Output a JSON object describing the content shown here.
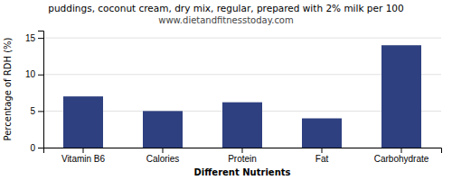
{
  "chart_data": {
    "type": "bar",
    "title": "puddings, coconut cream, dry mix, regular, prepared with 2% milk per 100",
    "subtitle": "www.dietandfitnesstoday.com",
    "categories": [
      "Vitamin B6",
      "Calories",
      "Protein",
      "Fat",
      "Carbohydrate"
    ],
    "values": [
      7,
      5,
      6.2,
      4,
      14
    ],
    "color": "#2e4080",
    "xlabel": "Different Nutrients",
    "ylabel": "Percentage of RDH (%)",
    "ylim": [
      0,
      16
    ],
    "yticks": [
      0,
      5,
      10,
      15
    ],
    "grid": true
  }
}
